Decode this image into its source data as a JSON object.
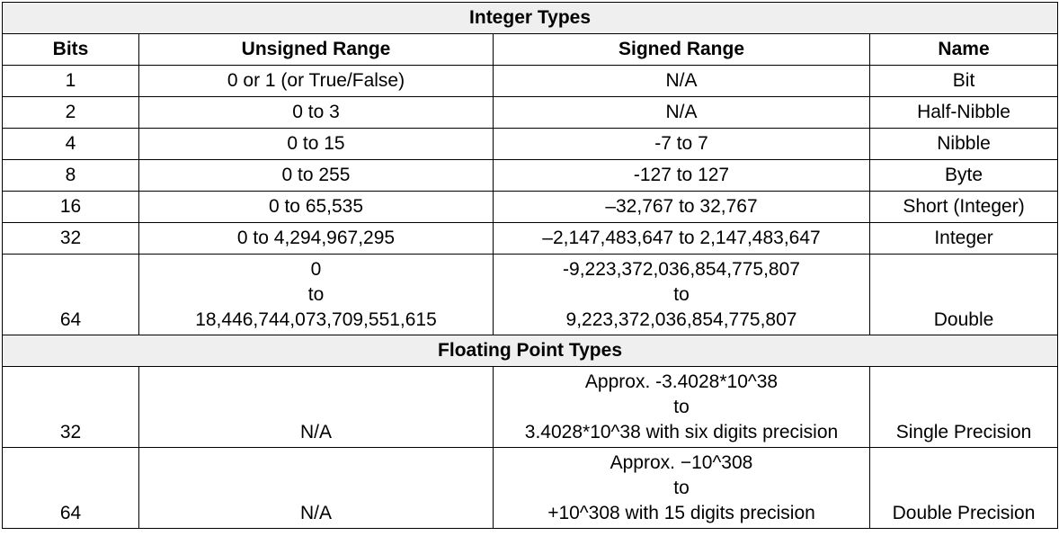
{
  "table": {
    "integer_title": "Integer Types",
    "headers": {
      "bits": "Bits",
      "unsigned": "Unsigned Range",
      "signed": "Signed Range",
      "name": "Name"
    },
    "integer_rows": [
      {
        "bits": "1",
        "unsigned": "0 or 1 (or True/False)",
        "signed": "N/A",
        "name": "Bit"
      },
      {
        "bits": "2",
        "unsigned": "0 to 3",
        "signed": "N/A",
        "name": "Half-Nibble"
      },
      {
        "bits": "4",
        "unsigned": "0 to 15",
        "signed": "-7 to 7",
        "name": "Nibble"
      },
      {
        "bits": "8",
        "unsigned": "0 to 255",
        "signed": "-127 to 127",
        "name": "Byte"
      },
      {
        "bits": "16",
        "unsigned": "0 to 65,535",
        "signed": "–32,767 to 32,767",
        "name": "Short (Integer)"
      },
      {
        "bits": "32",
        "unsigned": "0 to 4,294,967,295",
        "signed": "–2,147,483,647 to 2,147,483,647",
        "name": "Integer"
      }
    ],
    "integer_row_64": {
      "bits": "64",
      "unsigned": [
        "0",
        "to",
        "18,446,744,073,709,551,615"
      ],
      "signed": [
        "-9,223,372,036,854,775,807",
        "to",
        "9,223,372,036,854,775,807"
      ],
      "name": "Double"
    },
    "float_title": "Floating Point Types",
    "float_rows": [
      {
        "bits": "32",
        "unsigned": "N/A",
        "signed": [
          "Approx. -3.4028*10^38",
          "to",
          "3.4028*10^38 with six digits precision"
        ],
        "name": "Single Precision"
      },
      {
        "bits": "64",
        "unsigned": "N/A",
        "signed": [
          "Approx. −10^308",
          "to",
          "+10^308 with 15 digits precision"
        ],
        "name": "Double Precision"
      }
    ]
  }
}
